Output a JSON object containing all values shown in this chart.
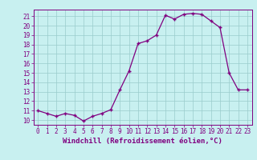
{
  "x": [
    0,
    1,
    2,
    3,
    4,
    5,
    6,
    7,
    8,
    9,
    10,
    11,
    12,
    13,
    14,
    15,
    16,
    17,
    18,
    19,
    20,
    21,
    22,
    23
  ],
  "y": [
    11.0,
    10.7,
    10.4,
    10.7,
    10.5,
    9.9,
    10.4,
    10.7,
    11.1,
    13.2,
    15.2,
    18.1,
    18.4,
    19.0,
    21.1,
    20.7,
    21.2,
    21.3,
    21.2,
    20.5,
    19.8,
    15.0,
    13.2,
    13.2
  ],
  "line_color": "#800080",
  "marker": "+",
  "marker_size": 3,
  "bg_color": "#c8f0f0",
  "grid_color": "#99cccc",
  "xlabel": "Windchill (Refroidissement éolien,°C)",
  "xlim": [
    -0.5,
    23.5
  ],
  "ylim": [
    9.5,
    21.7
  ],
  "yticks": [
    10,
    11,
    12,
    13,
    14,
    15,
    16,
    17,
    18,
    19,
    20,
    21
  ],
  "xticks": [
    0,
    1,
    2,
    3,
    4,
    5,
    6,
    7,
    8,
    9,
    10,
    11,
    12,
    13,
    14,
    15,
    16,
    17,
    18,
    19,
    20,
    21,
    22,
    23
  ],
  "tick_color": "#800080",
  "tick_fontsize": 5.5,
  "xlabel_fontsize": 6.5,
  "axis_color": "#800080",
  "linewidth": 0.9,
  "markeredgewidth": 1.0
}
